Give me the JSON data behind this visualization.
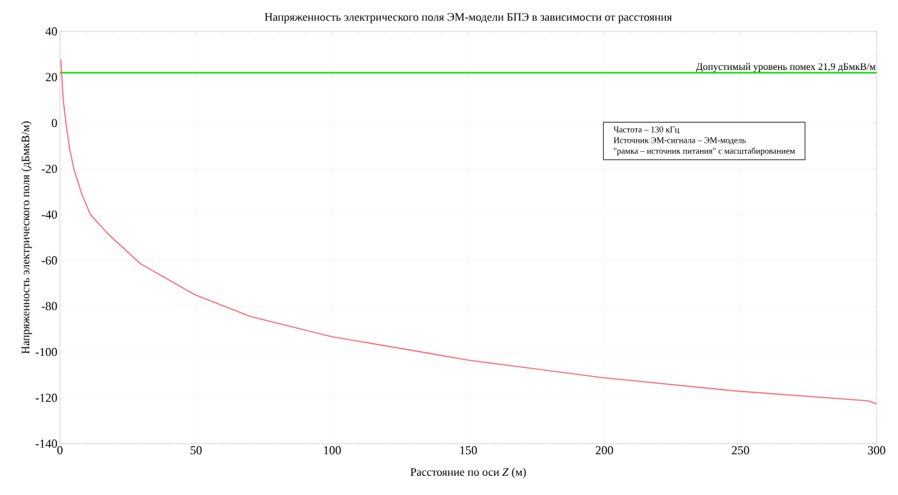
{
  "chart_data": {
    "type": "line",
    "title": "Напряженность электрического поля ЭМ-модели БПЭ в зависимости от расстояния",
    "xlabel": "Расстояние по оси *Z* (м)",
    "ylabel": "Напряженность электрического поля  (дБмкВ/м)",
    "x": [
      0.3,
      0.7,
      1.2,
      2.2,
      3.5,
      5.1,
      8,
      11.2,
      17.3,
      29.6,
      49.6,
      70,
      99.5,
      135.3,
      149.7,
      198.8,
      248.1,
      296.9,
      300
    ],
    "series": [
      {
        "color": "#f46a78",
        "values": [
          27.8,
          20,
          10,
          0,
          -11,
          -20,
          -31,
          -40,
          -48,
          -61.5,
          -75,
          -84.5,
          -93.2,
          -100.5,
          -103.5,
          -111.1,
          -117,
          -121.3,
          -122.6
        ]
      }
    ],
    "xlim": [
      0,
      300
    ],
    "ylim": [
      -140,
      40
    ],
    "xticks": [
      0,
      50,
      100,
      150,
      200,
      250,
      300
    ],
    "yticks": [
      -140,
      -120,
      -100,
      -80,
      -60,
      -40,
      -20,
      0,
      20,
      40
    ],
    "grid": true,
    "line_style": "solid",
    "marker": "none",
    "ref_lines": [
      {
        "axis": "y",
        "value": 21.9,
        "label": "Допустимый уровень помех 21,9 дБмкВ/м",
        "color": "#22e022"
      }
    ],
    "annotations": [
      "Частота – 130 кГц",
      "Источник ЭМ-сигнала – ЭМ-модель",
      "\"рамка – источник питания\" с масштабированием"
    ]
  }
}
